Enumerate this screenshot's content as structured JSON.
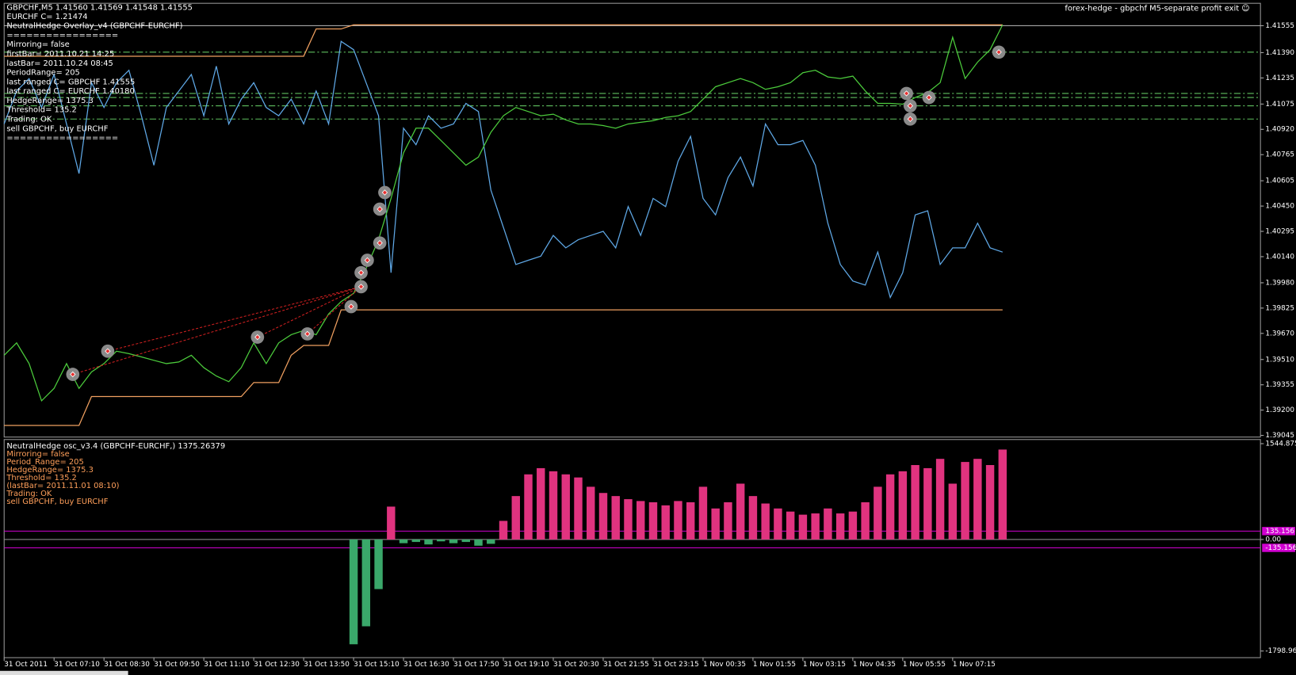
{
  "chart_data": [
    {
      "type": "line",
      "title": "GBPCHF,M5  1.41560 1.41569 1.41548 1.41555",
      "expert": "forex-hedge - gbpchf M5-separate profit exit ☺",
      "info_lines": [
        "EURCHF C= 1.21474",
        "NeutralHedge Overlay_v4 (GBPCHF-EURCHF)",
        "=================",
        "Mirroring= false",
        "firstBar= 2011.10.21 14:25",
        "lastBar= 2011.10.24 08:45",
        "PeriodRange= 205",
        "last ranged C= GBPCHF 1.41555",
        "last ranged C= EURCHF 1.40180",
        "HedgeRange= 1375.3",
        "Threshold= 135.2",
        "Trading: OK",
        "sell GBPCHF, buy EURCHF",
        "================="
      ],
      "categories": [
        "31 Oct 2011",
        null,
        null,
        null,
        "31 Oct 07:10",
        null,
        null,
        null,
        "31 Oct 08:30",
        null,
        null,
        null,
        "31 Oct 09:50",
        null,
        null,
        null,
        "31 Oct 11:10",
        null,
        null,
        null,
        "31 Oct 12:30",
        null,
        null,
        null,
        "31 Oct 13:50",
        null,
        null,
        null,
        "31 Oct 15:10",
        null,
        null,
        null,
        "31 Oct 16:30",
        null,
        null,
        null,
        "31 Oct 17:50",
        null,
        null,
        null,
        "31 Oct 19:10",
        null,
        null,
        null,
        "31 Oct 20:30",
        null,
        null,
        null,
        "31 Oct 21:55",
        null,
        null,
        null,
        "31 Oct 23:15",
        null,
        null,
        null,
        "1 Nov 00:35",
        null,
        null,
        null,
        "1 Nov 01:55",
        null,
        null,
        null,
        "1 Nov 03:15",
        null,
        null,
        null,
        "1 Nov 04:35",
        null,
        null,
        null,
        "1 Nov 05:55",
        null,
        null,
        null,
        "1 Nov 07:15",
        null,
        null,
        null,
        null
      ],
      "series": [
        {
          "color": "#5fa8e6",
          "values": [
            1.40953,
            1.41155,
            1.41231,
            1.41054,
            1.41256,
            1.40953,
            1.40649,
            1.41206,
            1.41054,
            1.41206,
            1.41282,
            1.41003,
            1.407,
            1.41054,
            1.41155,
            1.41256,
            1.41003,
            1.41307,
            1.40953,
            1.41105,
            1.41206,
            1.41054,
            1.41003,
            1.41105,
            1.40953,
            1.41155,
            1.40953,
            1.41459,
            1.41408,
            1.41206,
            1.41003,
            1.40042,
            1.40927,
            1.40826,
            1.41003,
            1.40927,
            1.40953,
            1.41079,
            1.41029,
            1.40548,
            1.4032,
            1.40092,
            1.40118,
            1.40143,
            1.4027,
            1.40194,
            1.40244,
            1.4027,
            1.40295,
            1.40194,
            1.40447,
            1.4027,
            1.40497,
            1.40447,
            1.40725,
            1.40877,
            1.40497,
            1.40396,
            1.40624,
            1.4075,
            1.40573,
            1.40953,
            1.40826,
            1.40826,
            1.40852,
            1.407,
            1.40345,
            1.40092,
            1.39991,
            1.39966,
            1.40168,
            1.3989,
            1.40042,
            1.40396,
            1.40421,
            1.40092,
            1.40194,
            1.40194,
            1.40345,
            1.40194,
            1.40168
          ]
        },
        {
          "color": "#4ccc3c",
          "values": [
            1.39536,
            1.39612,
            1.39485,
            1.39257,
            1.39333,
            1.39485,
            1.39333,
            1.39434,
            1.39485,
            1.39561,
            1.39546,
            1.39526,
            1.39505,
            1.39485,
            1.39495,
            1.39536,
            1.3946,
            1.39409,
            1.39374,
            1.3946,
            1.39612,
            1.39485,
            1.39612,
            1.39662,
            1.39688,
            1.39662,
            1.39789,
            1.39865,
            1.39915,
            1.40067,
            1.40244,
            1.40497,
            1.40776,
            1.40927,
            1.40927,
            1.40852,
            1.40776,
            1.407,
            1.4075,
            1.40902,
            1.41003,
            1.41054,
            1.41029,
            1.41003,
            1.41013,
            1.40978,
            1.40953,
            1.40953,
            1.40943,
            1.40927,
            1.40953,
            1.40963,
            1.40973,
            1.40993,
            1.41003,
            1.41029,
            1.41105,
            1.41181,
            1.41206,
            1.41231,
            1.41206,
            1.41165,
            1.41181,
            1.41206,
            1.41267,
            1.41282,
            1.41241,
            1.41231,
            1.41246,
            1.41155,
            1.41079,
            1.41079,
            1.41074,
            1.41115,
            1.41145,
            1.41206,
            1.41484,
            1.41231,
            1.41332,
            1.41408,
            1.4156
          ]
        },
        {
          "color": "#f0a060",
          "values": [
            1.41368,
            1.41368,
            1.41368,
            1.41368,
            1.41368,
            1.41368,
            1.41368,
            1.41368,
            1.41368,
            1.41368,
            1.41368,
            1.41368,
            1.41368,
            1.41368,
            1.41368,
            1.41368,
            1.41368,
            1.41368,
            1.41368,
            1.41368,
            1.41368,
            1.41368,
            1.41368,
            1.41368,
            1.41368,
            1.41535,
            1.41535,
            1.41535,
            1.4156,
            1.4156,
            1.4156,
            1.4156,
            1.4156,
            1.4156,
            1.4156,
            1.4156,
            1.4156,
            1.4156,
            1.4156,
            1.4156,
            1.4156,
            1.4156,
            1.4156,
            1.4156,
            1.4156,
            1.4156,
            1.4156,
            1.4156,
            1.4156,
            1.4156,
            1.4156,
            1.4156,
            1.4156,
            1.4156,
            1.4156,
            1.4156,
            1.4156,
            1.4156,
            1.4156,
            1.4156,
            1.4156,
            1.4156,
            1.4156,
            1.4156,
            1.4156,
            1.4156,
            1.4156,
            1.4156,
            1.4156,
            1.4156,
            1.4156,
            1.4156,
            1.4156,
            1.4156,
            1.4156,
            1.4156,
            1.4156,
            1.4156,
            1.4156,
            1.4156,
            1.4156
          ]
        },
        {
          "color": "#f0a060",
          "values": [
            1.39106,
            1.39106,
            1.39106,
            1.39106,
            1.39106,
            1.39106,
            1.39106,
            1.39283,
            1.39283,
            1.39283,
            1.39283,
            1.39283,
            1.39283,
            1.39283,
            1.39283,
            1.39283,
            1.39283,
            1.39283,
            1.39283,
            1.39283,
            1.39369,
            1.39369,
            1.39369,
            1.39536,
            1.39596,
            1.39596,
            1.39596,
            1.39814,
            1.39814,
            1.39814,
            1.39814,
            1.39814,
            1.39814,
            1.39814,
            1.39814,
            1.39814,
            1.39814,
            1.39814,
            1.39814,
            1.39814,
            1.39814,
            1.39814,
            1.39814,
            1.39814,
            1.39814,
            1.39814,
            1.39814,
            1.39814,
            1.39814,
            1.39814,
            1.39814,
            1.39814,
            1.39814,
            1.39814,
            1.39814,
            1.39814,
            1.39814,
            1.39814,
            1.39814,
            1.39814,
            1.39814,
            1.39814,
            1.39814,
            1.39814,
            1.39814,
            1.39814,
            1.39814,
            1.39814,
            1.39814,
            1.39814,
            1.39814,
            1.39814,
            1.39814,
            1.39814,
            1.39814,
            1.39814,
            1.39814,
            1.39814,
            1.39814,
            1.39814,
            1.39814
          ]
        }
      ],
      "markers": {
        "color": "#8a8a8a",
        "x": [
          5.5,
          8.3,
          20.3,
          24.3,
          27.8,
          28.6,
          28.6,
          29.1,
          30.1,
          30.1,
          30.5,
          72.3,
          72.6,
          72.6,
          74.1,
          79.7
        ],
        "values": [
          1.39419,
          1.39561,
          1.39647,
          1.39667,
          1.39834,
          1.39956,
          1.40042,
          1.40118,
          1.40224,
          1.40431,
          1.40533,
          1.4114,
          1.41064,
          1.40983,
          1.41115,
          1.41393
        ]
      },
      "levels": [
        1.41393,
        1.4114,
        1.41115,
        1.41064,
        1.40983
      ],
      "level_color": "#5fbf5f",
      "ylim": [
        1.3904,
        1.41687
      ],
      "yticks": [
        {
          "value": 1.41555,
          "label": "1.41555"
        },
        {
          "value": 1.4139,
          "label": "1.41390"
        },
        {
          "value": 1.41235,
          "label": "1.41235"
        },
        {
          "value": 1.41075,
          "label": "1.41075"
        },
        {
          "value": 1.4092,
          "label": "1.40920"
        },
        {
          "value": 1.40765,
          "label": "1.40765"
        },
        {
          "value": 1.40605,
          "label": "1.40605"
        },
        {
          "value": 1.4045,
          "label": "1.40450"
        },
        {
          "value": 1.40295,
          "label": "1.40295"
        },
        {
          "value": 1.4014,
          "label": "1.40140"
        },
        {
          "value": 1.3998,
          "label": "1.39980"
        },
        {
          "value": 1.39825,
          "label": "1.39825"
        },
        {
          "value": 1.3967,
          "label": "1.39670"
        },
        {
          "value": 1.3951,
          "label": "1.39510"
        },
        {
          "value": 1.39355,
          "label": "1.39355"
        },
        {
          "value": 1.392,
          "label": "1.39200"
        },
        {
          "value": 1.39045,
          "label": "1.39045"
        }
      ]
    },
    {
      "type": "bar",
      "title": "NeutralHedge osc_v3.4 (GBPCHF-EURCHF,)  1375.26379",
      "info_lines": [
        "Mirroring= false",
        "Period_Range= 205",
        "HedgeRange= 1375.3",
        "Threshold= 135.2",
        "(lastBar= 2011.11.01 08:10)",
        "Trading: OK",
        "sell GBPCHF, buy EURCHF"
      ],
      "positive_color": "#e0337f",
      "negative_color": "#3aa86a",
      "values": [
        null,
        null,
        null,
        null,
        null,
        null,
        null,
        null,
        null,
        null,
        null,
        null,
        null,
        null,
        null,
        null,
        null,
        null,
        null,
        null,
        null,
        null,
        null,
        null,
        null,
        null,
        null,
        null,
        -1690,
        -1400,
        -800,
        530,
        -60,
        -40,
        -80,
        -30,
        -60,
        -40,
        -100,
        -70,
        300,
        700,
        1050,
        1150,
        1100,
        1050,
        1000,
        850,
        750,
        700,
        650,
        620,
        600,
        550,
        620,
        600,
        850,
        500,
        600,
        900,
        700,
        580,
        500,
        450,
        400,
        420,
        500,
        420,
        450,
        600,
        850,
        1050,
        1100,
        1200,
        1150,
        1300,
        900,
        1250,
        1300,
        1200,
        1450
      ],
      "levels": [
        135.156,
        -135.156
      ],
      "level_color": "#d000d0",
      "ylim": [
        -1798.96,
        1544.875
      ],
      "yticks": [
        1544.875,
        {
          "value": 0,
          "label": "0.00"
        },
        -1798.96
      ]
    }
  ]
}
